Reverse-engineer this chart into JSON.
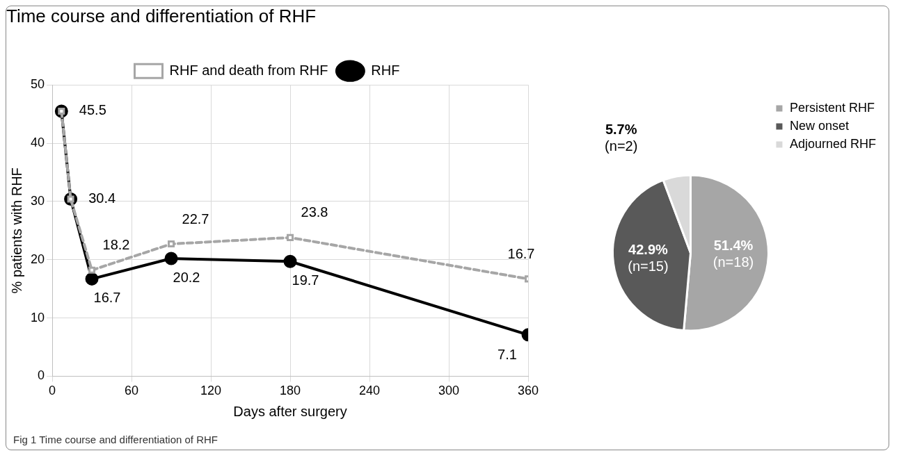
{
  "chart_data": [
    {
      "type": "line",
      "title": "Time course and differentiation of RHF",
      "xlabel": "Days after surgery",
      "ylabel": "% patients with RHF",
      "x": [
        7,
        14,
        30,
        90,
        180,
        360
      ],
      "xlim": [
        0,
        360
      ],
      "xticks": [
        0,
        60,
        120,
        180,
        240,
        300,
        360
      ],
      "ylim": [
        0,
        50
      ],
      "yticks": [
        0,
        10,
        20,
        30,
        40,
        50
      ],
      "grid": true,
      "legend": "top",
      "annotations": [
        "Fig 1 Time course and differentiation of RHF"
      ],
      "series": [
        {
          "name": "RHF",
          "color": "#000000",
          "marker": "circle",
          "line_style": "solid",
          "values": [
            45.5,
            30.4,
            16.7,
            20.2,
            19.7,
            7.1
          ],
          "value_labels": [
            null,
            null,
            "16.7",
            "20.2",
            "19.7",
            "7.1"
          ]
        },
        {
          "name": "RHF and death from RHF",
          "color": "#a6a6a6",
          "marker": "square",
          "line_style": "dashed",
          "values": [
            45.5,
            30.4,
            18.2,
            22.7,
            23.8,
            16.7
          ],
          "value_labels": [
            "45.5",
            "30.4",
            "18.2",
            "22.7",
            "23.8",
            "16.7"
          ]
        }
      ]
    },
    {
      "type": "pie",
      "categories": [
        "Persistent RHF",
        "New onset",
        "Adjourned RHF"
      ],
      "values": [
        51.4,
        42.9,
        5.7
      ],
      "colors": [
        "#a6a6a6",
        "#595959",
        "#d9d9d9"
      ],
      "value_labels": [
        "51.4% (n=18)",
        "42.9% (n=15)",
        "5.7% (n=2)"
      ],
      "legend": "top right"
    }
  ]
}
